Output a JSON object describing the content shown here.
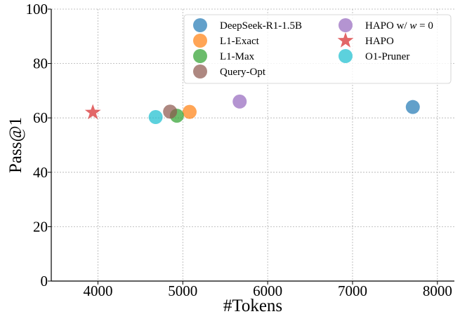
{
  "chart_data": {
    "type": "scatter",
    "xlabel": "#Tokens",
    "ylabel": "Pass@1",
    "xlim": [
      3450,
      8200
    ],
    "ylim": [
      0,
      100
    ],
    "xticks": [
      4000,
      5000,
      6000,
      7000,
      8000
    ],
    "yticks": [
      0,
      20,
      40,
      60,
      80,
      100
    ],
    "grid": true,
    "legend_position": "top-right",
    "legend_columns": 2,
    "series": [
      {
        "name": "DeepSeek-R1-1.5B",
        "marker": "circle",
        "color": "#1f77b4",
        "points": [
          {
            "x": 7710,
            "y": 64.0
          }
        ]
      },
      {
        "name": "L1-Exact",
        "marker": "circle",
        "color": "#ff7f0e",
        "points": [
          {
            "x": 5080,
            "y": 62.2
          }
        ]
      },
      {
        "name": "L1-Max",
        "marker": "circle",
        "color": "#2ca02c",
        "points": [
          {
            "x": 4930,
            "y": 60.8
          }
        ]
      },
      {
        "name": "Query-Opt",
        "marker": "circle",
        "color": "#8c564b",
        "points": [
          {
            "x": 4850,
            "y": 62.3
          }
        ]
      },
      {
        "name": "HAPO w/ w = 0",
        "name_parts": [
          "HAPO w/ ",
          "w",
          " = 0"
        ],
        "marker": "circle",
        "color": "#9467bd",
        "points": [
          {
            "x": 5670,
            "y": 66.0
          }
        ]
      },
      {
        "name": "HAPO",
        "marker": "star",
        "color": "#d62728",
        "points": [
          {
            "x": 3940,
            "y": 62.0
          }
        ]
      },
      {
        "name": "O1-Pruner",
        "marker": "circle",
        "color": "#17becf",
        "points": [
          {
            "x": 4680,
            "y": 60.3
          }
        ]
      }
    ]
  }
}
